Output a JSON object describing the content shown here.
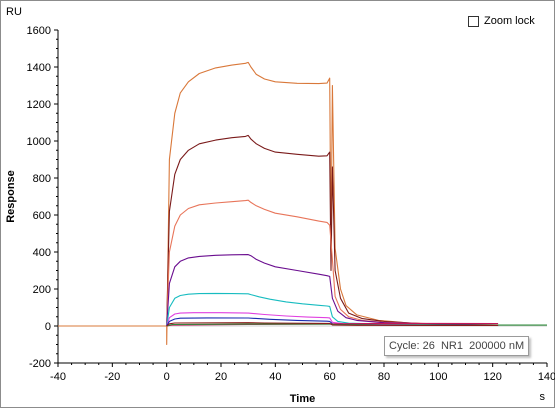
{
  "zoom_lock": {
    "label": "Zoom lock",
    "checked": false
  },
  "tooltip": {
    "text": "Cycle: 26  NR1  200000 nM"
  },
  "chart_data": {
    "type": "line",
    "title": "",
    "xlabel": "Time",
    "ylabel": "Response",
    "y_unit": "RU",
    "x_unit": "s",
    "xlim": [
      -40,
      140
    ],
    "ylim": [
      -200,
      1600
    ],
    "x_ticks": [
      -40,
      -20,
      0,
      20,
      40,
      60,
      80,
      100,
      120,
      140
    ],
    "y_ticks": [
      -200,
      0,
      200,
      400,
      600,
      800,
      1000,
      1200,
      1400,
      1600
    ],
    "grid": false,
    "association_end": 30,
    "injection_end": 60,
    "series": [
      {
        "color": "#d9783a",
        "values": [
          [
            -40,
            0
          ],
          [
            0,
            0
          ],
          [
            0,
            -100
          ],
          [
            1,
            900
          ],
          [
            3,
            1150
          ],
          [
            5,
            1260
          ],
          [
            8,
            1320
          ],
          [
            12,
            1365
          ],
          [
            18,
            1395
          ],
          [
            24,
            1410
          ],
          [
            29,
            1420
          ],
          [
            30,
            1425
          ],
          [
            31,
            1400
          ],
          [
            33,
            1360
          ],
          [
            36,
            1335
          ],
          [
            40,
            1320
          ],
          [
            48,
            1312
          ],
          [
            56,
            1310
          ],
          [
            59,
            1313
          ],
          [
            60,
            1340
          ],
          [
            60.5,
            400
          ],
          [
            61,
            1300
          ],
          [
            62,
            420
          ],
          [
            64,
            200
          ],
          [
            66,
            110
          ],
          [
            70,
            60
          ],
          [
            78,
            30
          ],
          [
            90,
            15
          ],
          [
            110,
            8
          ],
          [
            122,
            5
          ]
        ]
      },
      {
        "color": "#7a1a1a",
        "values": [
          [
            0,
            0
          ],
          [
            1,
            620
          ],
          [
            3,
            820
          ],
          [
            5,
            900
          ],
          [
            8,
            950
          ],
          [
            12,
            985
          ],
          [
            18,
            1005
          ],
          [
            24,
            1018
          ],
          [
            29,
            1025
          ],
          [
            30,
            1030
          ],
          [
            31,
            1010
          ],
          [
            33,
            985
          ],
          [
            36,
            960
          ],
          [
            40,
            940
          ],
          [
            48,
            928
          ],
          [
            56,
            918
          ],
          [
            59,
            920
          ],
          [
            60,
            940
          ],
          [
            60.5,
            300
          ],
          [
            61,
            860
          ],
          [
            62,
            300
          ],
          [
            64,
            150
          ],
          [
            67,
            70
          ],
          [
            72,
            40
          ],
          [
            80,
            25
          ],
          [
            95,
            12
          ],
          [
            110,
            6
          ],
          [
            122,
            4
          ]
        ]
      },
      {
        "color": "#e8755a",
        "values": [
          [
            0,
            0
          ],
          [
            1,
            400
          ],
          [
            3,
            540
          ],
          [
            5,
            600
          ],
          [
            8,
            635
          ],
          [
            12,
            655
          ],
          [
            18,
            665
          ],
          [
            24,
            672
          ],
          [
            29,
            678
          ],
          [
            30,
            680
          ],
          [
            31,
            668
          ],
          [
            33,
            650
          ],
          [
            36,
            630
          ],
          [
            40,
            610
          ],
          [
            48,
            590
          ],
          [
            56,
            567
          ],
          [
            59,
            560
          ],
          [
            60,
            545
          ],
          [
            61,
            360
          ],
          [
            62,
            160
          ],
          [
            64,
            90
          ],
          [
            67,
            50
          ],
          [
            72,
            30
          ],
          [
            80,
            20
          ],
          [
            100,
            10
          ],
          [
            122,
            5
          ]
        ]
      },
      {
        "color": "#6a0d8f",
        "values": [
          [
            0,
            0
          ],
          [
            1,
            230
          ],
          [
            3,
            320
          ],
          [
            5,
            350
          ],
          [
            8,
            368
          ],
          [
            12,
            376
          ],
          [
            18,
            382
          ],
          [
            24,
            385
          ],
          [
            30,
            386
          ],
          [
            31,
            380
          ],
          [
            33,
            360
          ],
          [
            36,
            340
          ],
          [
            40,
            320
          ],
          [
            48,
            300
          ],
          [
            56,
            280
          ],
          [
            59,
            272
          ],
          [
            60,
            268
          ],
          [
            61,
            150
          ],
          [
            63,
            80
          ],
          [
            66,
            45
          ],
          [
            70,
            30
          ],
          [
            80,
            18
          ],
          [
            100,
            10
          ],
          [
            122,
            5
          ]
        ]
      },
      {
        "color": "#17bcc0",
        "values": [
          [
            0,
            0
          ],
          [
            1,
            100
          ],
          [
            3,
            150
          ],
          [
            5,
            165
          ],
          [
            8,
            172
          ],
          [
            12,
            175
          ],
          [
            18,
            176
          ],
          [
            24,
            175
          ],
          [
            30,
            174
          ],
          [
            31,
            170
          ],
          [
            34,
            158
          ],
          [
            38,
            145
          ],
          [
            44,
            130
          ],
          [
            50,
            120
          ],
          [
            56,
            112
          ],
          [
            59,
            108
          ],
          [
            60,
            106
          ],
          [
            61,
            50
          ],
          [
            63,
            25
          ],
          [
            67,
            15
          ],
          [
            80,
            10
          ],
          [
            100,
            6
          ],
          [
            122,
            4
          ]
        ]
      },
      {
        "color": "#e040e0",
        "values": [
          [
            0,
            0
          ],
          [
            1,
            45
          ],
          [
            3,
            65
          ],
          [
            5,
            70
          ],
          [
            10,
            72
          ],
          [
            20,
            72
          ],
          [
            30,
            70
          ],
          [
            36,
            62
          ],
          [
            44,
            54
          ],
          [
            52,
            48
          ],
          [
            59,
            45
          ],
          [
            60,
            44
          ],
          [
            61,
            20
          ],
          [
            65,
            12
          ],
          [
            80,
            8
          ],
          [
            100,
            5
          ],
          [
            122,
            3
          ]
        ]
      },
      {
        "color": "#1a2ab0",
        "values": [
          [
            0,
            0
          ],
          [
            1,
            25
          ],
          [
            3,
            38
          ],
          [
            5,
            42
          ],
          [
            15,
            44
          ],
          [
            30,
            43
          ],
          [
            38,
            36
          ],
          [
            48,
            30
          ],
          [
            59,
            26
          ],
          [
            60,
            25
          ],
          [
            61,
            12
          ],
          [
            66,
            8
          ],
          [
            80,
            5
          ],
          [
            100,
            4
          ],
          [
            122,
            3
          ]
        ]
      },
      {
        "color": "#c4145a",
        "values": [
          [
            0,
            0
          ],
          [
            2,
            5
          ],
          [
            30,
            8
          ],
          [
            60,
            10
          ],
          [
            62,
            12
          ],
          [
            80,
            14
          ],
          [
            100,
            14
          ],
          [
            122,
            13
          ]
        ]
      },
      {
        "color": "#2e8b3a",
        "values": [
          [
            0,
            0
          ],
          [
            2,
            8
          ],
          [
            30,
            10
          ],
          [
            60,
            10
          ],
          [
            62,
            8
          ],
          [
            80,
            6
          ],
          [
            110,
            5
          ],
          [
            140,
            5
          ]
        ]
      },
      {
        "color": "#8b1a1a",
        "values": [
          [
            0,
            0
          ],
          [
            1,
            12
          ],
          [
            3,
            16
          ],
          [
            30,
            18
          ],
          [
            36,
            16
          ],
          [
            59,
            14
          ],
          [
            60,
            14
          ],
          [
            61,
            6
          ],
          [
            70,
            4
          ],
          [
            100,
            3
          ],
          [
            122,
            3
          ]
        ]
      }
    ]
  }
}
